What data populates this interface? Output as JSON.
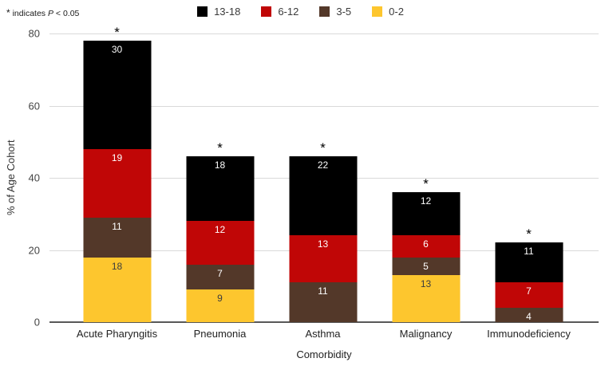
{
  "annotation": {
    "marker": "*",
    "text_before": "indicates",
    "stat_symbol": "P",
    "text_after": "< 0.05"
  },
  "legend": {
    "items": [
      {
        "label": "13-18",
        "color": "#000000"
      },
      {
        "label": "6-12",
        "color": "#c00606"
      },
      {
        "label": "3-5",
        "color": "#533829"
      },
      {
        "label": "0-2",
        "color": "#fdc62e"
      }
    ]
  },
  "chart_data": {
    "type": "bar",
    "stacked": true,
    "title": "",
    "xlabel": "Comorbidity",
    "ylabel": "% of Age Cohort",
    "ylim": [
      0,
      80
    ],
    "yticks": [
      0,
      20,
      40,
      60,
      80
    ],
    "grid": "horizontal",
    "legend_position": "top",
    "categories": [
      "Acute Pharyngitis",
      "Pneumonia",
      "Asthma",
      "Malignancy",
      "Immunodeficiency"
    ],
    "series": [
      {
        "name": "0-2",
        "color": "#fdc62e",
        "label_color": "#3d3d3d",
        "values": [
          18,
          9,
          0,
          13,
          0
        ]
      },
      {
        "name": "3-5",
        "color": "#533829",
        "label_color": "#ffffff",
        "values": [
          11,
          7,
          11,
          5,
          4
        ]
      },
      {
        "name": "6-12",
        "color": "#c00606",
        "label_color": "#ffffff",
        "values": [
          19,
          12,
          13,
          6,
          7
        ]
      },
      {
        "name": "13-18",
        "color": "#000000",
        "label_color": "#ffffff",
        "values": [
          30,
          18,
          22,
          12,
          11
        ]
      }
    ],
    "bar_totals": [
      78,
      46,
      46,
      36,
      22
    ],
    "significance_markers": [
      "*",
      "*",
      "*",
      "*",
      "*"
    ]
  },
  "colors": {
    "gridline": "#d9d9d9",
    "axis_line": "#585858"
  }
}
